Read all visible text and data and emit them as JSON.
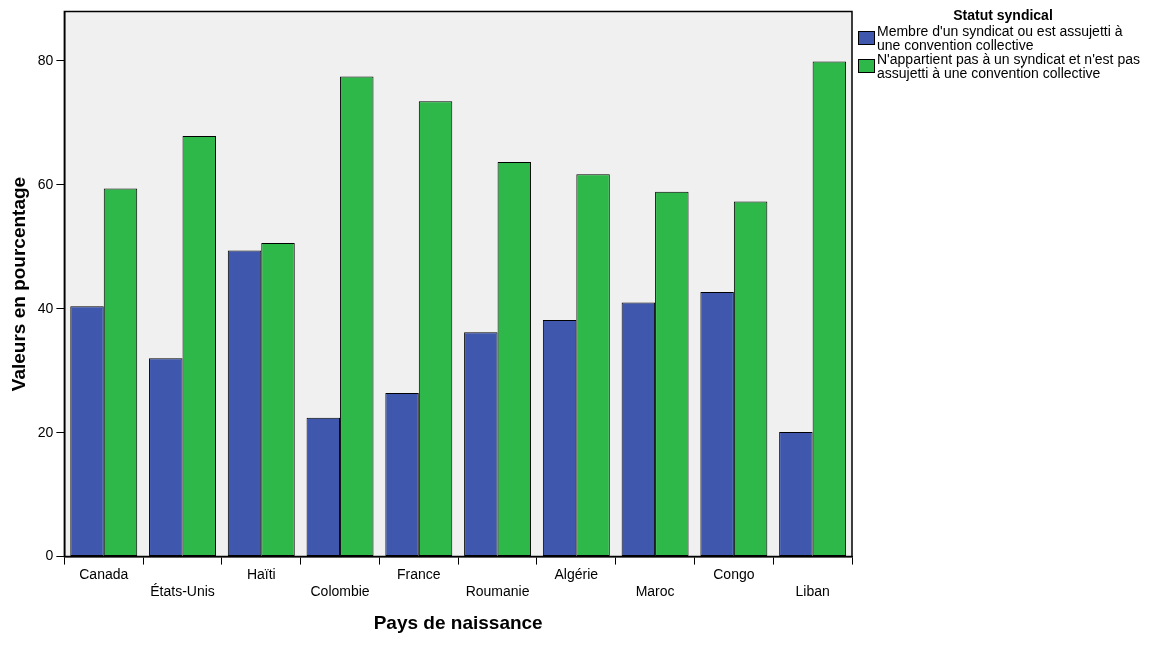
{
  "chart_data": {
    "type": "bar",
    "xlabel": "Pays de naissance",
    "ylabel": "Valeurs en pourcentage",
    "legend_title": "Statut syndical",
    "categories": [
      "Canada",
      "États-Unis",
      "Haïti",
      "Colombie",
      "France",
      "Roumanie",
      "Algérie",
      "Maroc",
      "Congo",
      "Liban"
    ],
    "series": [
      {
        "name": "Membre d'un syndicat ou est assujetti à une convention collective",
        "color": "#3f58ad",
        "values": [
          40.4,
          32.0,
          49.4,
          22.4,
          26.4,
          36.2,
          38.2,
          41.0,
          42.7,
          20.1
        ]
      },
      {
        "name": "N'appartient pas à un syndicat et n'est pas assujetti à une convention collective",
        "color": "#2fb84a",
        "values": [
          59.4,
          67.9,
          50.6,
          77.5,
          73.5,
          63.7,
          61.7,
          58.9,
          57.3,
          79.9
        ]
      }
    ],
    "ylim": [
      0,
      88
    ],
    "yticks": [
      0,
      20,
      40,
      60,
      80
    ],
    "grid": false,
    "legend": "right"
  }
}
